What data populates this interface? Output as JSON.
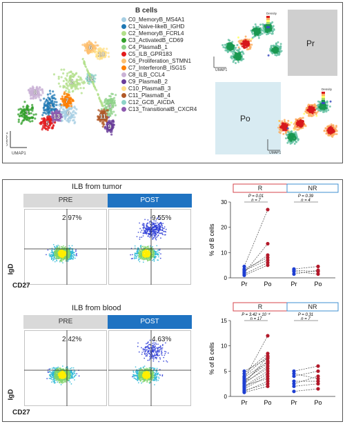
{
  "top_panel": {
    "legend_title": "B cells",
    "clusters": [
      {
        "label": "C0_MemoryB_MS4A1",
        "color": "#a6cee3",
        "num": "0"
      },
      {
        "label": "C1_Naive-likeB_IGHD",
        "color": "#1f78b4",
        "num": "1"
      },
      {
        "label": "C2_MemoryB_FCRL4",
        "color": "#b2df8a",
        "num": "2"
      },
      {
        "label": "C3_ActivatedB_CD69",
        "color": "#33a02c",
        "num": "3"
      },
      {
        "label": "C4_PlasmaB_1",
        "color": "#8fd18a",
        "num": "4"
      },
      {
        "label": "C5_ILB_GPR183",
        "color": "#e31a1c",
        "num": "5"
      },
      {
        "label": "C6_Proliferation_STMN1",
        "color": "#fdbf6f",
        "num": "6"
      },
      {
        "label": "C7_InterferonB_ISG15",
        "color": "#ff7f00",
        "num": "7"
      },
      {
        "label": "C8_ILB_CCL4",
        "color": "#cab2d6",
        "num": "8"
      },
      {
        "label": "C9_PlasmaB_2",
        "color": "#6a3d9a",
        "num": "9"
      },
      {
        "label": "C10_PlasmaB_3",
        "color": "#ffe08a",
        "num": "10"
      },
      {
        "label": "C11_PlasmaB_4",
        "color": "#b15928",
        "num": "11"
      },
      {
        "label": "C12_GCB_AICDA",
        "color": "#8dd3c7",
        "num": "12"
      },
      {
        "label": "C13_TransitionalB_CXCR4",
        "color": "#8e5bb0",
        "num": "13"
      }
    ],
    "umap_axis_x": "UMAP1",
    "umap_axis_y": "UMAP2",
    "pr_label": "Pr",
    "po_label": "Po",
    "density_legend_title": "Density"
  },
  "bottom_panel": {
    "tumor": {
      "title": "ILB from tumor",
      "pre_label": "PRE",
      "post_label": "POST",
      "pre_pct": "2.97%",
      "post_pct": "9.55%",
      "y_axis": "IgD",
      "x_axis": "CD27"
    },
    "blood": {
      "title": "ILB from blood",
      "pre_label": "PRE",
      "post_label": "POST",
      "pre_pct": "2.42%",
      "post_pct": "4.63%",
      "y_axis": "IgD",
      "x_axis": "CD27"
    }
  },
  "chart_data": [
    {
      "type": "scatter",
      "title": "",
      "ylabel": "% of B cells",
      "ylim": [
        0,
        30
      ],
      "yticks": [
        0,
        10,
        20,
        30
      ],
      "categories": [
        "Pr",
        "Po",
        "Pr",
        "Po"
      ],
      "groups": [
        {
          "name": "R",
          "stat": "P = 0.01",
          "n": "n = 7",
          "pairs": [
            [
              1.5,
              6
            ],
            [
              2.5,
              9
            ],
            [
              3.5,
              8
            ],
            [
              2.0,
              13.5
            ],
            [
              4.5,
              27
            ],
            [
              1.0,
              5
            ],
            [
              3.0,
              7
            ]
          ]
        },
        {
          "name": "NR",
          "stat": "P = 0.39",
          "n": "n = 4",
          "pairs": [
            [
              3.5,
              4.5
            ],
            [
              2.5,
              1.5
            ],
            [
              1.5,
              3.0
            ],
            [
              3.0,
              2.5
            ]
          ]
        }
      ]
    },
    {
      "type": "scatter",
      "title": "",
      "ylabel": "% of B cells",
      "ylim": [
        0,
        15
      ],
      "yticks": [
        0,
        5,
        10,
        15
      ],
      "categories": [
        "Pr",
        "Po",
        "Pr",
        "Po"
      ],
      "groups": [
        {
          "name": "R",
          "stat": "P = 3.42 × 10⁻⁴",
          "n": "n = 17",
          "pairs": [
            [
              1.0,
              3.0
            ],
            [
              1.5,
              4.0
            ],
            [
              2.0,
              5.0
            ],
            [
              2.5,
              6.0
            ],
            [
              3.0,
              7.0
            ],
            [
              3.5,
              12.0
            ],
            [
              4.0,
              8.0
            ],
            [
              4.5,
              8.5
            ],
            [
              5.0,
              7.5
            ],
            [
              1.2,
              2.5
            ],
            [
              2.2,
              3.5
            ],
            [
              2.8,
              5.5
            ],
            [
              3.2,
              6.5
            ],
            [
              0.8,
              2.0
            ],
            [
              1.8,
              4.5
            ],
            [
              2.6,
              7.8
            ],
            [
              3.8,
              6.8
            ]
          ]
        },
        {
          "name": "NR",
          "stat": "P = 0.31",
          "n": "n = 7",
          "pairs": [
            [
              1.0,
              1.5
            ],
            [
              2.0,
              2.5
            ],
            [
              3.0,
              3.0
            ],
            [
              4.5,
              3.5
            ],
            [
              4.0,
              5.0
            ],
            [
              2.5,
              4.0
            ],
            [
              5.0,
              6.0
            ]
          ]
        }
      ]
    }
  ]
}
